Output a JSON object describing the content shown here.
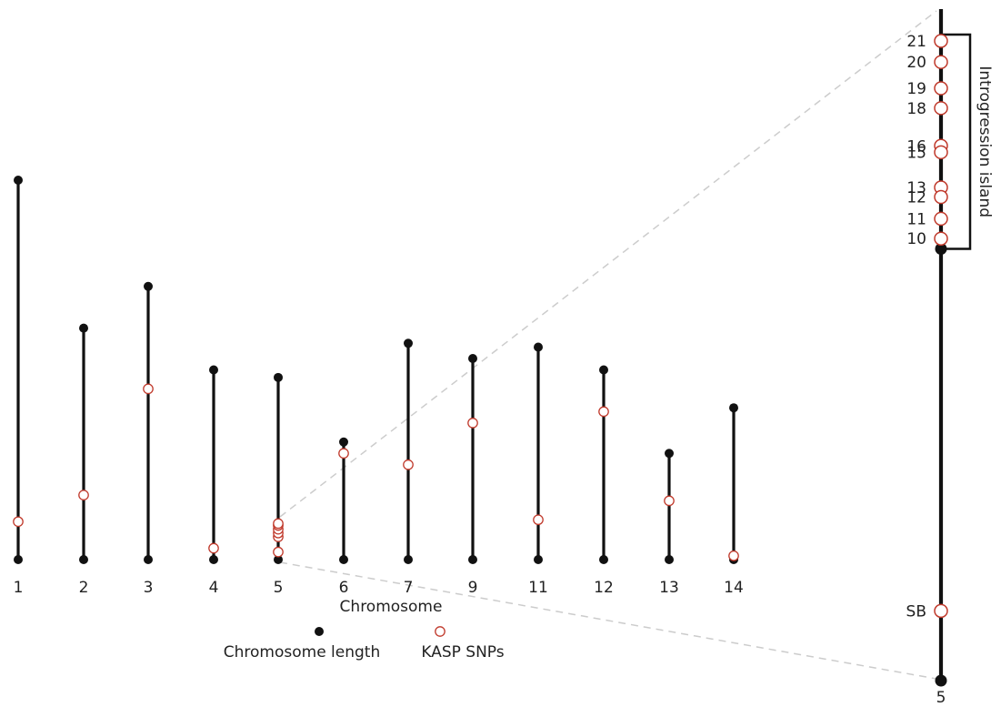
{
  "chart_data": {
    "type": "scatter",
    "xlabel": "Chromosome",
    "legend": {
      "placement": "bottom-center",
      "items": [
        {
          "label": "Chromosome length",
          "marker": "filled-circle"
        },
        {
          "label": "KASP SNPs",
          "marker": "open-circle"
        }
      ]
    },
    "colors": {
      "chromosome": "#111111",
      "snp": "#c0392b",
      "guide": "#cccccc"
    },
    "ylim": [
      0,
      100
    ],
    "chromosomes": [
      {
        "label": "1",
        "length": 100,
        "snps": [
          10
        ]
      },
      {
        "label": "2",
        "length": 61,
        "snps": [
          17
        ]
      },
      {
        "label": "3",
        "length": 72,
        "snps": [
          45
        ]
      },
      {
        "label": "4",
        "length": 50,
        "snps": [
          3
        ]
      },
      {
        "label": "5",
        "length": 48,
        "snps": [
          2,
          6,
          7,
          8,
          9,
          9.5
        ]
      },
      {
        "label": "6",
        "length": 31,
        "snps": [
          28
        ]
      },
      {
        "label": "7",
        "length": 57,
        "snps": [
          25
        ]
      },
      {
        "label": "9",
        "length": 53,
        "snps": [
          36
        ]
      },
      {
        "label": "11",
        "length": 56,
        "snps": [
          10.5
        ]
      },
      {
        "label": "12",
        "length": 50,
        "snps": [
          39
        ]
      },
      {
        "label": "13",
        "length": 28,
        "snps": [
          15.5
        ]
      },
      {
        "label": "14",
        "length": 40,
        "snps": [
          1
        ]
      }
    ],
    "zoom": {
      "chromosome": "5",
      "bracket_label": "Introgression island",
      "snps": [
        {
          "label": "21",
          "pos": 100
        },
        {
          "label": "20",
          "pos": 96.7
        },
        {
          "label": "19",
          "pos": 92.6
        },
        {
          "label": "18",
          "pos": 89.5
        },
        {
          "label": "16",
          "pos": 83.6
        },
        {
          "label": "15",
          "pos": 82.6
        },
        {
          "label": "13",
          "pos": 77.1
        },
        {
          "label": "12",
          "pos": 75.6
        },
        {
          "label": "11",
          "pos": 72.2
        },
        {
          "label": "10",
          "pos": 69.1
        },
        {
          "label": "SB",
          "pos": 10.9
        }
      ],
      "island": [
        67.5,
        101
      ]
    }
  }
}
